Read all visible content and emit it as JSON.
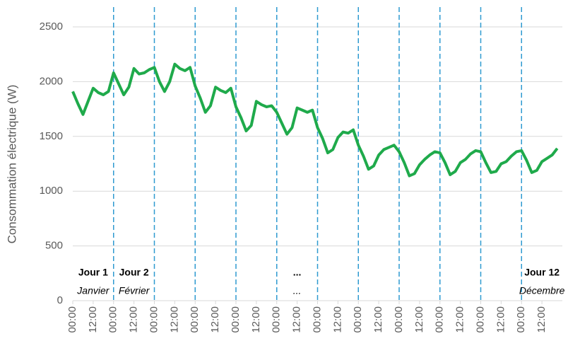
{
  "chart_data": {
    "type": "line",
    "ylabel": "Consommation électrique (W)",
    "xlim": [
      0,
      288
    ],
    "xticks": [
      {
        "value": 0,
        "label": "00:00"
      },
      {
        "value": 12,
        "label": "12:00"
      },
      {
        "value": 24,
        "label": "00:00"
      },
      {
        "value": 36,
        "label": "12:00"
      },
      {
        "value": 48,
        "label": "00:00"
      },
      {
        "value": 60,
        "label": "12:00"
      },
      {
        "value": 72,
        "label": "00:00"
      },
      {
        "value": 84,
        "label": "12:00"
      },
      {
        "value": 96,
        "label": "00:00"
      },
      {
        "value": 108,
        "label": "12:00"
      },
      {
        "value": 120,
        "label": "00:00"
      },
      {
        "value": 132,
        "label": "12:00"
      },
      {
        "value": 144,
        "label": "00:00"
      },
      {
        "value": 156,
        "label": "12:00"
      },
      {
        "value": 168,
        "label": "00:00"
      },
      {
        "value": 180,
        "label": "12:00"
      },
      {
        "value": 192,
        "label": "00:00"
      },
      {
        "value": 204,
        "label": "12:00"
      },
      {
        "value": 216,
        "label": "00:00"
      },
      {
        "value": 228,
        "label": "12:00"
      },
      {
        "value": 240,
        "label": "00:00"
      },
      {
        "value": 252,
        "label": "12:00"
      },
      {
        "value": 264,
        "label": "00:00"
      },
      {
        "value": 276,
        "label": "12:00"
      }
    ],
    "ylim": [
      0,
      2500
    ],
    "yticks": [
      0,
      500,
      1000,
      1500,
      2000,
      2500
    ],
    "grid": true,
    "vlines": [
      24,
      48,
      72,
      96,
      120,
      144,
      168,
      192,
      216,
      240,
      264
    ],
    "vline_color": "#2e9ad0",
    "annotations": [
      {
        "x": 12,
        "text": "Jour 1",
        "subtext": "Janvier"
      },
      {
        "x": 36,
        "text": "Jour 2",
        "subtext": "Février"
      },
      {
        "x": 132,
        "text": "...",
        "subtext": "..."
      },
      {
        "x": 276,
        "text": "Jour 12",
        "subtext": "Décembre"
      }
    ],
    "x": [
      0,
      3,
      6,
      9,
      12,
      15,
      18,
      21,
      24,
      27,
      30,
      33,
      36,
      39,
      42,
      45,
      48,
      51,
      54,
      57,
      60,
      63,
      66,
      69,
      72,
      75,
      78,
      81,
      84,
      87,
      90,
      93,
      96,
      99,
      102,
      105,
      108,
      111,
      114,
      117,
      120,
      123,
      126,
      129,
      132,
      135,
      138,
      141,
      144,
      147,
      150,
      153,
      156,
      159,
      162,
      165,
      168,
      171,
      174,
      177,
      180,
      183,
      186,
      189,
      192,
      195,
      198,
      201,
      204,
      207,
      210,
      213,
      216,
      219,
      222,
      225,
      228,
      231,
      234,
      237,
      240,
      243,
      246,
      249,
      252,
      255,
      258,
      261,
      264,
      267,
      270,
      273,
      276,
      279,
      282,
      285
    ],
    "series": [
      {
        "color": "#1faa4b",
        "values": [
          1910,
          1800,
          1700,
          1820,
          1940,
          1900,
          1880,
          1910,
          2080,
          1980,
          1880,
          1950,
          2120,
          2070,
          2080,
          2110,
          2130,
          2000,
          1910,
          2000,
          2160,
          2120,
          2100,
          2130,
          1960,
          1850,
          1720,
          1780,
          1950,
          1920,
          1900,
          1940,
          1770,
          1670,
          1550,
          1600,
          1820,
          1790,
          1770,
          1780,
          1720,
          1620,
          1520,
          1580,
          1760,
          1740,
          1720,
          1740,
          1580,
          1480,
          1350,
          1380,
          1490,
          1540,
          1530,
          1560,
          1420,
          1320,
          1200,
          1230,
          1330,
          1380,
          1400,
          1420,
          1360,
          1260,
          1140,
          1160,
          1240,
          1290,
          1330,
          1360,
          1350,
          1260,
          1150,
          1180,
          1260,
          1290,
          1340,
          1370,
          1360,
          1260,
          1170,
          1180,
          1250,
          1270,
          1320,
          1360,
          1370,
          1280,
          1170,
          1190,
          1270,
          1300,
          1330,
          1390
        ]
      }
    ]
  }
}
